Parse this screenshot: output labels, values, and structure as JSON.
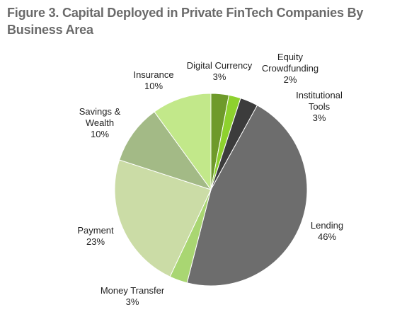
{
  "figure": {
    "title": "Figure 3. Capital Deployed in Private FinTech Companies By Business Area"
  },
  "chart_data": {
    "type": "pie",
    "title": "Figure 3. Capital Deployed in Private FinTech Companies By Business Area",
    "slices": [
      {
        "lines": [
          "Digital Currency",
          "3%"
        ],
        "value": 3,
        "color": "#6e9a2a"
      },
      {
        "lines": [
          "Equity",
          "Crowdfunding",
          "2%"
        ],
        "value": 2,
        "color": "#8ed12e"
      },
      {
        "lines": [
          "Institutional",
          "Tools",
          "3%"
        ],
        "value": 3,
        "color": "#3c3c3c"
      },
      {
        "lines": [
          "Lending",
          "46%"
        ],
        "value": 46,
        "color": "#6d6d6d"
      },
      {
        "lines": [
          "Money Transfer",
          "3%"
        ],
        "value": 3,
        "color": "#a9d672"
      },
      {
        "lines": [
          "Payment",
          "23%"
        ],
        "value": 23,
        "color": "#cbdca6"
      },
      {
        "lines": [
          "Savings &",
          "Wealth",
          "10%"
        ],
        "value": 10,
        "color": "#a3ba86"
      },
      {
        "lines": [
          "Insurance",
          "10%"
        ],
        "value": 10,
        "color": "#c2e88a"
      }
    ],
    "start_angle_deg": 0,
    "direction": "clockwise"
  }
}
